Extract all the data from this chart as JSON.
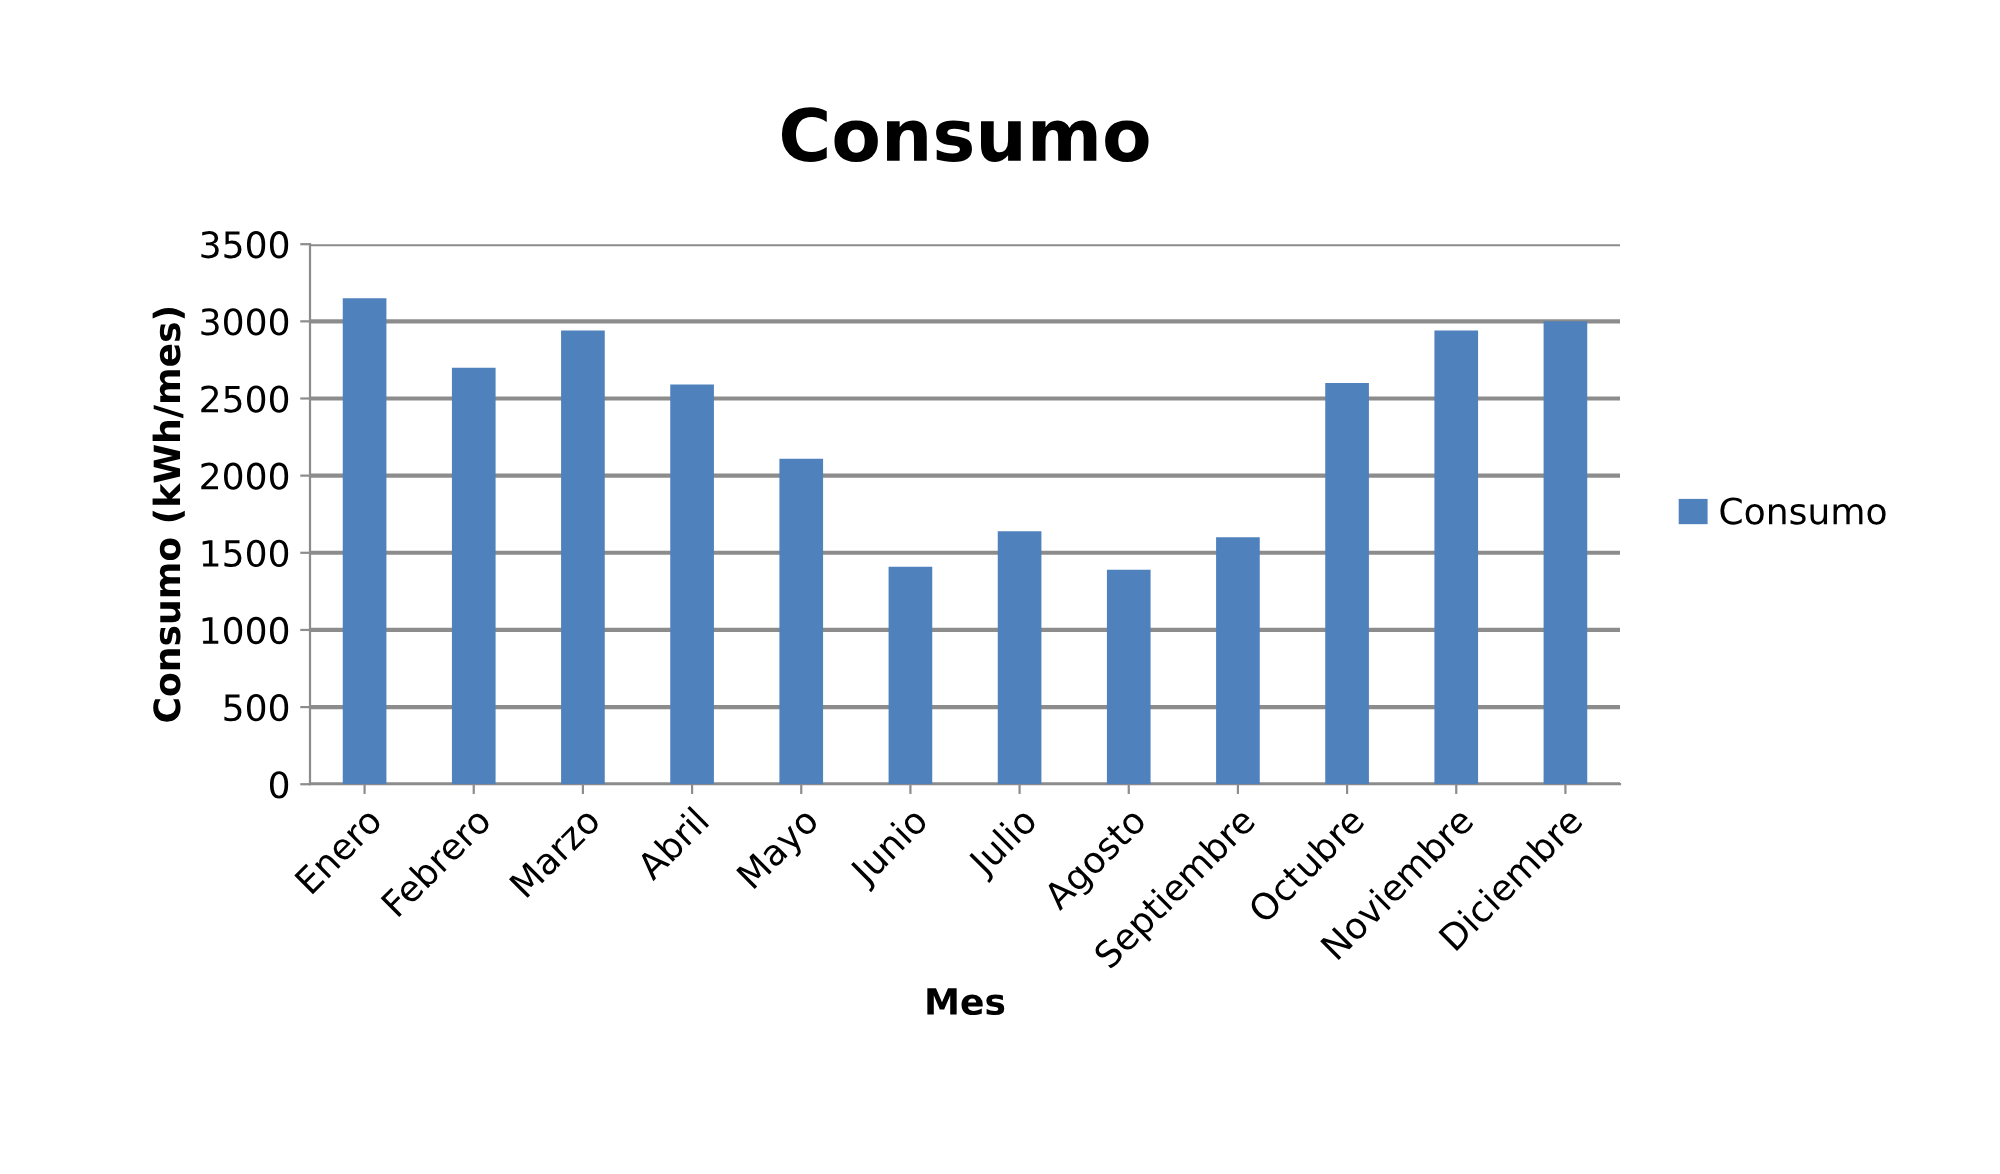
{
  "chart_data": {
    "type": "bar",
    "title": "Consumo",
    "xlabel": "Mes",
    "ylabel": "Consumo (kWh/mes)",
    "categories": [
      "Enero",
      "Febrero",
      "Marzo",
      "Abril",
      "Mayo",
      "Junio",
      "Julio",
      "Agosto",
      "Septiembre",
      "Octubre",
      "Noviembre",
      "Diciembre"
    ],
    "series": [
      {
        "name": "Consumo",
        "color": "#4f81bd",
        "values": [
          3150,
          2700,
          2940,
          2590,
          2110,
          1410,
          1640,
          1390,
          1600,
          2600,
          2940,
          3000
        ]
      }
    ],
    "ylim": [
      0,
      3500
    ],
    "yticks": [
      0,
      500,
      1000,
      1500,
      2000,
      2500,
      3000,
      3500
    ],
    "grid": "y",
    "legend": "right"
  }
}
